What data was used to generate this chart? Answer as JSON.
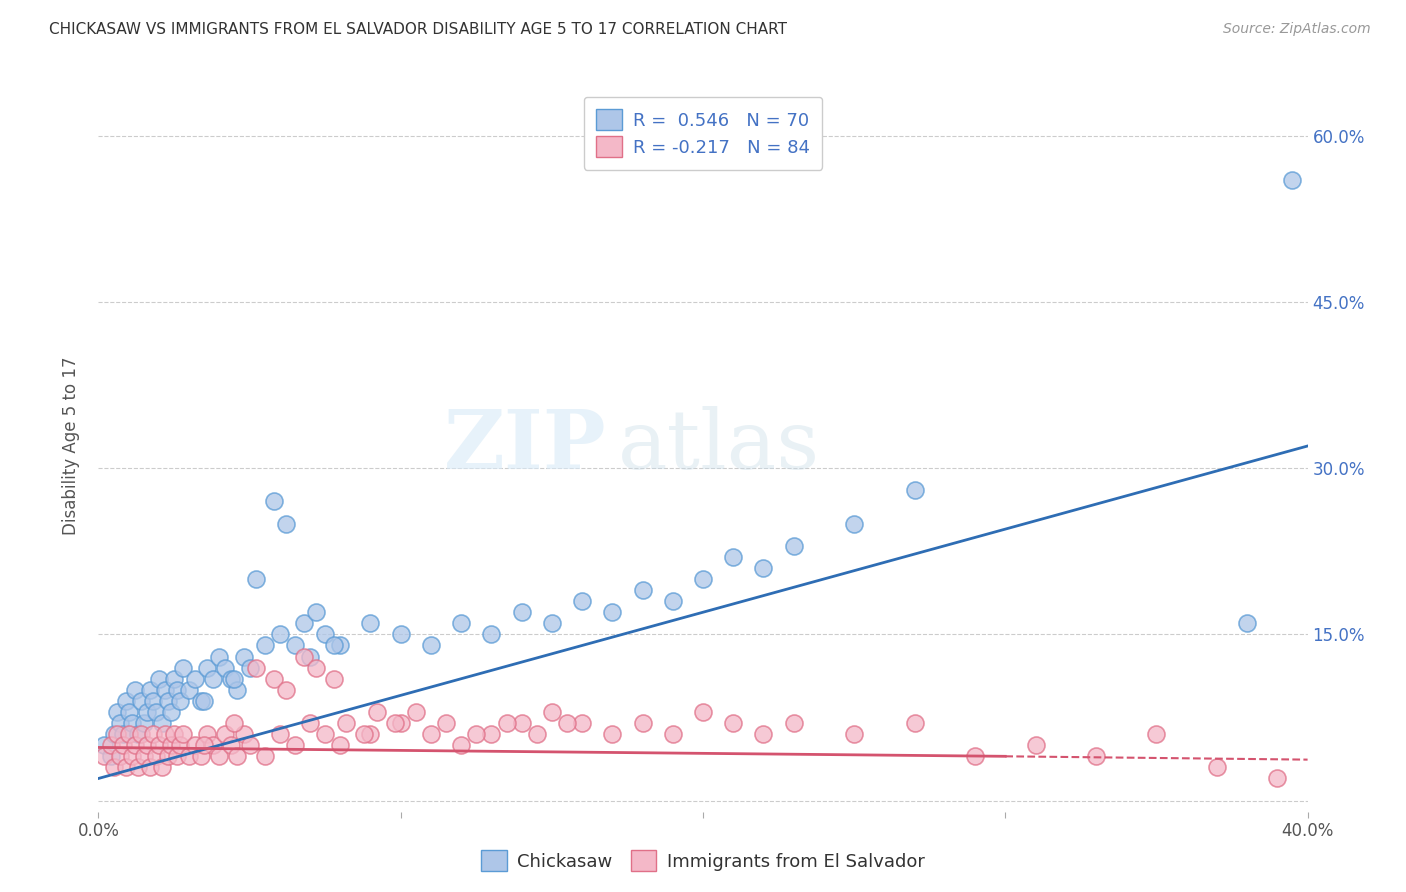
{
  "title": "CHICKASAW VS IMMIGRANTS FROM EL SALVADOR DISABILITY AGE 5 TO 17 CORRELATION CHART",
  "source": "Source: ZipAtlas.com",
  "ylabel": "Disability Age 5 to 17",
  "xlim": [
    0.0,
    0.4
  ],
  "ylim": [
    -0.01,
    0.65
  ],
  "x_ticks": [
    0.0,
    0.1,
    0.2,
    0.3,
    0.4
  ],
  "x_tick_labels": [
    "0.0%",
    "",
    "",
    "",
    "40.0%"
  ],
  "y_ticks": [
    0.0,
    0.15,
    0.3,
    0.45,
    0.6
  ],
  "y_tick_labels_right": [
    "",
    "15.0%",
    "30.0%",
    "45.0%",
    "60.0%"
  ],
  "watermark_zip": "ZIP",
  "watermark_atlas": "atlas",
  "series1_name": "Chickasaw",
  "series1_color": "#aec6e8",
  "series1_edge_color": "#5b9bd5",
  "series1_line_color": "#2e6db4",
  "series1_R": 0.546,
  "series1_N": 70,
  "series2_name": "Immigrants from El Salvador",
  "series2_color": "#f4b8c8",
  "series2_edge_color": "#e07088",
  "series2_line_color": "#d4536e",
  "series2_R": -0.217,
  "series2_N": 84,
  "legend_color": "#4472c4",
  "background_color": "#ffffff",
  "grid_color": "#cccccc",
  "series1_x": [
    0.002,
    0.004,
    0.005,
    0.006,
    0.007,
    0.008,
    0.009,
    0.01,
    0.011,
    0.012,
    0.013,
    0.014,
    0.015,
    0.016,
    0.017,
    0.018,
    0.019,
    0.02,
    0.021,
    0.022,
    0.023,
    0.024,
    0.025,
    0.026,
    0.027,
    0.028,
    0.03,
    0.032,
    0.034,
    0.036,
    0.038,
    0.04,
    0.042,
    0.044,
    0.046,
    0.048,
    0.05,
    0.055,
    0.06,
    0.065,
    0.07,
    0.075,
    0.08,
    0.09,
    0.1,
    0.11,
    0.12,
    0.13,
    0.14,
    0.15,
    0.16,
    0.17,
    0.18,
    0.19,
    0.2,
    0.21,
    0.22,
    0.23,
    0.25,
    0.27,
    0.035,
    0.045,
    0.052,
    0.058,
    0.062,
    0.068,
    0.072,
    0.078,
    0.38,
    0.395
  ],
  "series1_y": [
    0.05,
    0.04,
    0.06,
    0.08,
    0.07,
    0.06,
    0.09,
    0.08,
    0.07,
    0.1,
    0.06,
    0.09,
    0.07,
    0.08,
    0.1,
    0.09,
    0.08,
    0.11,
    0.07,
    0.1,
    0.09,
    0.08,
    0.11,
    0.1,
    0.09,
    0.12,
    0.1,
    0.11,
    0.09,
    0.12,
    0.11,
    0.13,
    0.12,
    0.11,
    0.1,
    0.13,
    0.12,
    0.14,
    0.15,
    0.14,
    0.13,
    0.15,
    0.14,
    0.16,
    0.15,
    0.14,
    0.16,
    0.15,
    0.17,
    0.16,
    0.18,
    0.17,
    0.19,
    0.18,
    0.2,
    0.22,
    0.21,
    0.23,
    0.25,
    0.28,
    0.09,
    0.11,
    0.2,
    0.27,
    0.25,
    0.16,
    0.17,
    0.14,
    0.16,
    0.56
  ],
  "series2_x": [
    0.002,
    0.004,
    0.005,
    0.006,
    0.007,
    0.008,
    0.009,
    0.01,
    0.011,
    0.012,
    0.013,
    0.014,
    0.015,
    0.016,
    0.017,
    0.018,
    0.019,
    0.02,
    0.021,
    0.022,
    0.023,
    0.024,
    0.025,
    0.026,
    0.027,
    0.028,
    0.03,
    0.032,
    0.034,
    0.036,
    0.038,
    0.04,
    0.042,
    0.044,
    0.046,
    0.048,
    0.05,
    0.055,
    0.06,
    0.065,
    0.07,
    0.075,
    0.08,
    0.09,
    0.1,
    0.11,
    0.12,
    0.13,
    0.14,
    0.15,
    0.16,
    0.17,
    0.18,
    0.19,
    0.2,
    0.21,
    0.22,
    0.23,
    0.25,
    0.27,
    0.035,
    0.045,
    0.052,
    0.058,
    0.062,
    0.068,
    0.072,
    0.078,
    0.29,
    0.31,
    0.33,
    0.35,
    0.37,
    0.39,
    0.082,
    0.088,
    0.092,
    0.098,
    0.105,
    0.115,
    0.125,
    0.135,
    0.145,
    0.155
  ],
  "series2_y": [
    0.04,
    0.05,
    0.03,
    0.06,
    0.04,
    0.05,
    0.03,
    0.06,
    0.04,
    0.05,
    0.03,
    0.06,
    0.04,
    0.05,
    0.03,
    0.06,
    0.04,
    0.05,
    0.03,
    0.06,
    0.04,
    0.05,
    0.06,
    0.04,
    0.05,
    0.06,
    0.04,
    0.05,
    0.04,
    0.06,
    0.05,
    0.04,
    0.06,
    0.05,
    0.04,
    0.06,
    0.05,
    0.04,
    0.06,
    0.05,
    0.07,
    0.06,
    0.05,
    0.06,
    0.07,
    0.06,
    0.05,
    0.06,
    0.07,
    0.08,
    0.07,
    0.06,
    0.07,
    0.06,
    0.08,
    0.07,
    0.06,
    0.07,
    0.06,
    0.07,
    0.05,
    0.07,
    0.12,
    0.11,
    0.1,
    0.13,
    0.12,
    0.11,
    0.04,
    0.05,
    0.04,
    0.06,
    0.03,
    0.02,
    0.07,
    0.06,
    0.08,
    0.07,
    0.08,
    0.07,
    0.06,
    0.07,
    0.06,
    0.07
  ]
}
